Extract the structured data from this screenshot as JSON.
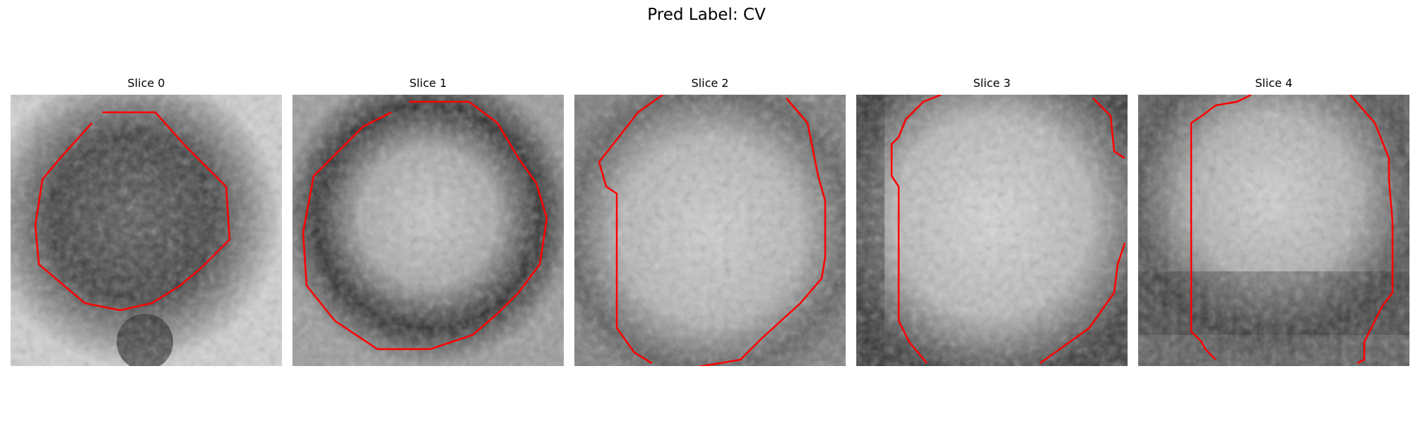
{
  "figure": {
    "title": "Pred Label: CV"
  },
  "colors": {
    "contour": "#ff0000",
    "background": "#ffffff"
  },
  "panels": [
    {
      "title": "Slice 0",
      "image_style": "dark-blob-with-contour"
    },
    {
      "title": "Slice 1",
      "image_style": "dark-ring-bright-center"
    },
    {
      "title": "Slice 2",
      "image_style": "bright-center-gray-border"
    },
    {
      "title": "Slice 3",
      "image_style": "bright-center-dark-left"
    },
    {
      "title": "Slice 4",
      "image_style": "bright-center-dark-bottom"
    }
  ]
}
